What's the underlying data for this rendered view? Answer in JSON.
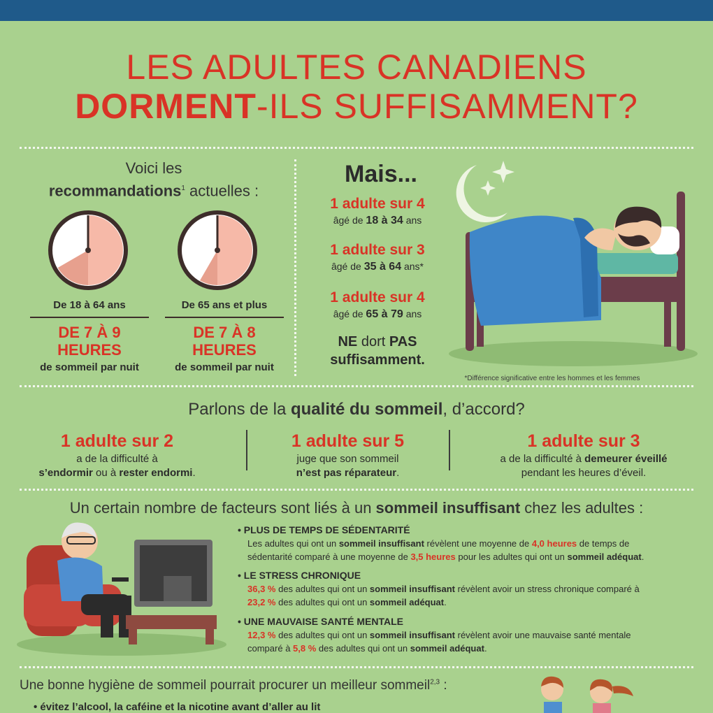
{
  "title": {
    "line1": "LES ADULTES CANADIENS",
    "line2_bold": "DORMENT",
    "line2_rest": "-ILS SUFFISAMMENT?"
  },
  "recommendations": {
    "lead": "Voici les",
    "bold": "recommandations",
    "sup": "1",
    "rest": " actuelles :",
    "groups": [
      {
        "age": "De 18 à 64 ans",
        "hours_line1": "DE 7 À 9",
        "hours_line2": "HEURES",
        "sub": "de sommeil par nuit"
      },
      {
        "age": "De 65 ans et plus",
        "hours_line1": "DE 7 À 8",
        "hours_line2": "HEURES",
        "sub": "de sommeil par nuit"
      }
    ]
  },
  "mais": {
    "heading": "Mais...",
    "stats": [
      {
        "ratio": "1 adulte sur 4",
        "pre": "âgé de ",
        "range": "18 à 34",
        "post": " ans"
      },
      {
        "ratio": "1 adulte sur 3",
        "pre": "âgé de ",
        "range": "35 à 64",
        "post": " ans*"
      },
      {
        "ratio": "1 adulte sur 4",
        "pre": "âgé de ",
        "range": "65 à 79",
        "post": " ans"
      }
    ],
    "conclusion_ne": "NE",
    "conclusion_dort": " dort ",
    "conclusion_pas": "PAS",
    "conclusion_suff": "suffisamment.",
    "footnote": "*Différence significative entre les hommes et les femmes"
  },
  "quality": {
    "heading_pre": "Parlons de la ",
    "heading_bold": "qualité du sommeil",
    "heading_post": ", d’accord?",
    "items": [
      {
        "ratio": "1 adulte sur 2",
        "line1": "a de la difficulté à",
        "b1": "s’endormir",
        "mid": " ou à ",
        "b2": "rester endormi",
        "end": "."
      },
      {
        "ratio": "1 adulte sur 5",
        "line1": "juge que son sommeil",
        "b1": "n’est pas réparateur",
        "mid": "",
        "b2": "",
        "end": "."
      },
      {
        "ratio": "1 adulte sur 3",
        "line1pre": "a de la difficulté à ",
        "line1b": "demeurer éveillé",
        "line2": "pendant les heures d’éveil."
      }
    ]
  },
  "factors": {
    "heading_pre": "Un certain nombre de facteurs sont liés à un ",
    "heading_bold": "sommeil insuffisant",
    "heading_post": " chez les adultes :",
    "items": [
      {
        "title": "PLUS DE TEMPS DE SÉDENTARITÉ",
        "p1": "Les adultes qui ont un ",
        "b1": "sommeil insuffisant",
        "p2": " révèlent une moyenne de ",
        "v1": "4,0 heures",
        "p3": " de temps de",
        "p4": "sédentarité comparé à une moyenne de ",
        "v2": "3,5 heures",
        "p5": " pour les adultes qui ont un ",
        "b2": "sommeil adéquat",
        "p6": "."
      },
      {
        "title": "LE STRESS CHRONIQUE",
        "v1": "36,3 %",
        "p1": " des adultes qui ont un ",
        "b1": "sommeil insuffisant",
        "p2": " révèlent avoir un stress chronique comparé à",
        "v2": "23,2 %",
        "p3": " des adultes qui ont un ",
        "b2": "sommeil adéquat",
        "p4": "."
      },
      {
        "title": "UNE MAUVAISE SANTÉ MENTALE",
        "v1": "12,3 %",
        "p1": " des adultes qui ont un ",
        "b1": "sommeil insuffisant",
        "p2": " révèlent avoir une mauvaise santé mentale",
        "p3": "comparé à ",
        "v2": "5,8 %",
        "p4": " des adultes qui ont un ",
        "b2": "sommeil adéquat",
        "p5": "."
      }
    ]
  },
  "hygiene": {
    "heading": "Une bonne hygiène de sommeil pourrait procurer un meilleur sommeil",
    "sup": "2,3",
    "colon": " :",
    "item1": "• évitez l’alcool, la caféine et la nicotine avant d’aller au lit"
  },
  "colors": {
    "accent": "#d93326",
    "background": "#a9d18e",
    "topbar": "#1f5a8a"
  }
}
